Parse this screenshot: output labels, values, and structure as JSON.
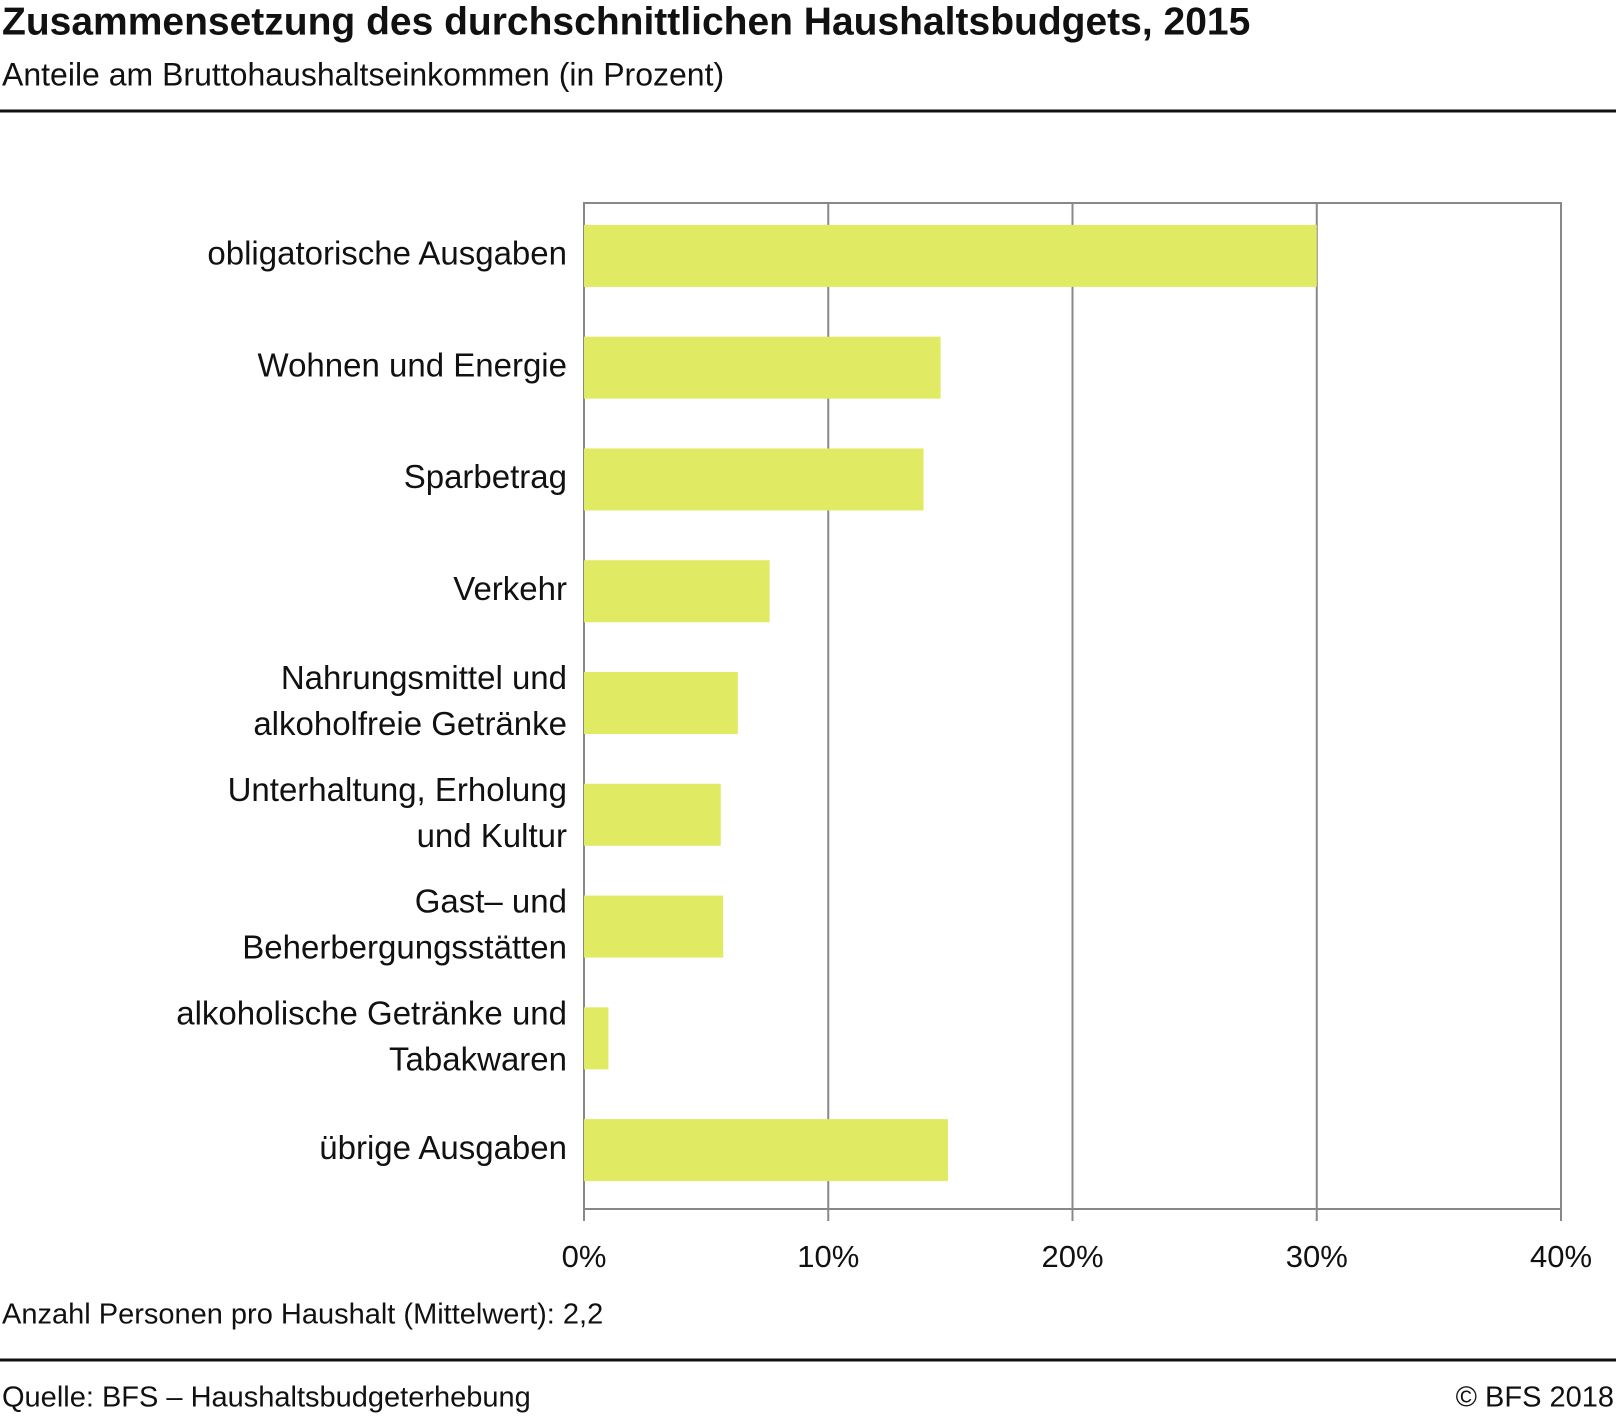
{
  "chart_data": {
    "type": "bar",
    "orientation": "horizontal",
    "title": "Zusammensetzung des durchschnittlichen Haushaltsbudgets, 2015",
    "subtitle": "Anteile am Bruttohaushaltseinkommen (in Prozent)",
    "categories": [
      "obligatorische Ausgaben",
      "Wohnen und Energie",
      "Sparbetrag",
      "Verkehr",
      "Nahrungsmittel und\nalkoholfreie Getränke",
      "Unterhaltung, Erholung\nund Kultur",
      "Gast– und\nBeherbergungsstätten",
      "alkoholische Getränke und\nTabakwaren",
      "übrige Ausgaben"
    ],
    "values": [
      30.0,
      14.6,
      13.9,
      7.6,
      6.3,
      5.6,
      5.7,
      1.0,
      14.9
    ],
    "color": "#e1ea63",
    "xlim": [
      0,
      40
    ],
    "xticks": [
      {
        "value": 0,
        "label": "0%"
      },
      {
        "value": 10,
        "label": "10%"
      },
      {
        "value": 20,
        "label": "20%"
      },
      {
        "value": 30,
        "label": "30%"
      },
      {
        "value": 40,
        "label": "40%"
      }
    ],
    "grid": true,
    "note": "Anzahl Personen pro Haushalt (Mittelwert): 2,2",
    "source": "Quelle: BFS – Haushaltsbudgeterhebung",
    "copyright": "© BFS  2018"
  }
}
